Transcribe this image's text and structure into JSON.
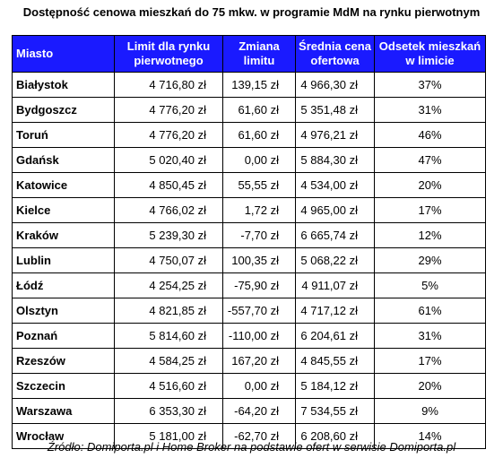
{
  "title": "Dostępność cenowa mieszkań do 75 mkw. w programie MdM na rynku pierwotnym",
  "headers": {
    "city": "Miasto",
    "limit": "Limit dla rynku pierwotnego",
    "change": "Zmiana limitu",
    "avg_price": "Średnia cena ofertowa",
    "share": "Odsetek mieszkań w limicie"
  },
  "rows": [
    {
      "city": "Białystok",
      "limit": "4 716,80 zł",
      "change": "139,15 zł",
      "avg_price": "4 966,30 zł",
      "share": "37%"
    },
    {
      "city": "Bydgoszcz",
      "limit": "4 776,20 zł",
      "change": "61,60 zł",
      "avg_price": "5 351,48 zł",
      "share": "31%"
    },
    {
      "city": "Toruń",
      "limit": "4 776,20 zł",
      "change": "61,60 zł",
      "avg_price": "4 976,21 zł",
      "share": "46%"
    },
    {
      "city": "Gdańsk",
      "limit": "5 020,40 zł",
      "change": "0,00 zł",
      "avg_price": "5 884,30 zł",
      "share": "47%"
    },
    {
      "city": "Katowice",
      "limit": "4 850,45 zł",
      "change": "55,55 zł",
      "avg_price": "4 534,00 zł",
      "share": "20%"
    },
    {
      "city": "Kielce",
      "limit": "4 766,02 zł",
      "change": "1,72 zł",
      "avg_price": "4 965,00 zł",
      "share": "17%"
    },
    {
      "city": "Kraków",
      "limit": "5 239,30 zł",
      "change": "-7,70 zł",
      "avg_price": "6 665,74 zł",
      "share": "12%"
    },
    {
      "city": "Lublin",
      "limit": "4 750,07 zł",
      "change": "100,35 zł",
      "avg_price": "5 068,22 zł",
      "share": "29%"
    },
    {
      "city": "Łódź",
      "limit": "4 254,25 zł",
      "change": "-75,90 zł",
      "avg_price": "4 911,07 zł",
      "share": "5%"
    },
    {
      "city": "Olsztyn",
      "limit": "4 821,85 zł",
      "change": "-557,70 zł",
      "avg_price": "4 717,12 zł",
      "share": "61%"
    },
    {
      "city": "Poznań",
      "limit": "5 814,60 zł",
      "change": "-110,00 zł",
      "avg_price": "6 204,61 zł",
      "share": "31%"
    },
    {
      "city": "Rzeszów",
      "limit": "4 584,25 zł",
      "change": "167,20 zł",
      "avg_price": "4 845,55 zł",
      "share": "17%"
    },
    {
      "city": "Szczecin",
      "limit": "4 516,60 zł",
      "change": "0,00 zł",
      "avg_price": "5 184,12 zł",
      "share": "20%"
    },
    {
      "city": "Warszawa",
      "limit": "6 353,30 zł",
      "change": "-64,20 zł",
      "avg_price": "7 534,55 zł",
      "share": "9%"
    },
    {
      "city": "Wrocław",
      "limit": "5 181,00 zł",
      "change": "-62,70 zł",
      "avg_price": "6 208,60 zł",
      "share": "14%"
    }
  ],
  "source": "Źródło: Domiporta.pl i Home Broker na podstawie ofert w serwisie Domiporta.pl",
  "colors": {
    "header_bg": "#1a1aff",
    "header_text": "#ffffff"
  }
}
